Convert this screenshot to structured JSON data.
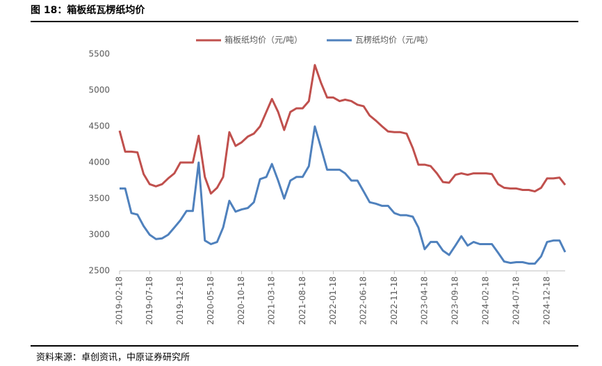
{
  "chart_data": {
    "type": "line",
    "title": "图 18：箱板纸瓦楞纸均价",
    "source": "资料来源：卓创资讯，中原证券研究所",
    "x": [
      "2019-02-18",
      "2019-03-18",
      "2019-04-18",
      "2019-05-18",
      "2019-06-18",
      "2019-07-18",
      "2019-08-18",
      "2019-09-18",
      "2019-10-18",
      "2019-11-18",
      "2019-12-18",
      "2020-01-18",
      "2020-02-18",
      "2020-03-18",
      "2020-04-18",
      "2020-05-18",
      "2020-06-18",
      "2020-07-18",
      "2020-08-18",
      "2020-09-18",
      "2020-10-18",
      "2020-11-18",
      "2020-12-18",
      "2021-01-18",
      "2021-02-18",
      "2021-03-18",
      "2021-04-18",
      "2021-05-18",
      "2021-06-18",
      "2021-07-18",
      "2021-08-18",
      "2021-09-18",
      "2021-10-18",
      "2021-11-18",
      "2021-12-18",
      "2022-01-18",
      "2022-02-18",
      "2022-03-18",
      "2022-04-18",
      "2022-05-18",
      "2022-06-18",
      "2022-07-18",
      "2022-08-18",
      "2022-09-18",
      "2022-10-18",
      "2022-11-18",
      "2022-12-18",
      "2023-01-18",
      "2023-02-18",
      "2023-03-18",
      "2023-04-18",
      "2023-05-18",
      "2023-06-18",
      "2023-07-18",
      "2023-08-18",
      "2023-09-18",
      "2023-10-18",
      "2023-11-18",
      "2023-12-18",
      "2024-01-18",
      "2024-02-18",
      "2024-03-18",
      "2024-04-18",
      "2024-05-18",
      "2024-06-18",
      "2024-07-18",
      "2024-08-18",
      "2024-09-18",
      "2024-10-18",
      "2024-11-18",
      "2024-12-18",
      "2025-01-18",
      "2025-02-18",
      "2025-03-18"
    ],
    "series": [
      {
        "name": "箱板纸均价（元/吨）",
        "color": "#c0504d",
        "values": [
          4440,
          4150,
          4150,
          4140,
          3840,
          3700,
          3670,
          3700,
          3780,
          3850,
          4000,
          4000,
          4000,
          4370,
          3800,
          3570,
          3650,
          3800,
          4420,
          4230,
          4280,
          4360,
          4400,
          4500,
          4700,
          4880,
          4700,
          4450,
          4700,
          4750,
          4750,
          4850,
          5350,
          5100,
          4900,
          4900,
          4850,
          4870,
          4850,
          4800,
          4780,
          4650,
          4580,
          4500,
          4430,
          4420,
          4420,
          4400,
          4200,
          3970,
          3970,
          3950,
          3850,
          3730,
          3720,
          3830,
          3850,
          3830,
          3850,
          3850,
          3850,
          3840,
          3700,
          3650,
          3640,
          3640,
          3620,
          3620,
          3600,
          3650,
          3780,
          3780,
          3790,
          3690
        ]
      },
      {
        "name": "瓦楞纸均价（元/吨）",
        "color": "#4f81bd",
        "values": [
          3640,
          3640,
          3300,
          3280,
          3120,
          3000,
          2940,
          2950,
          3000,
          3100,
          3200,
          3330,
          3330,
          4000,
          2920,
          2870,
          2900,
          3100,
          3470,
          3320,
          3350,
          3370,
          3450,
          3770,
          3800,
          3980,
          3750,
          3500,
          3750,
          3800,
          3800,
          3950,
          4500,
          4200,
          3900,
          3900,
          3900,
          3850,
          3750,
          3750,
          3600,
          3450,
          3430,
          3400,
          3400,
          3300,
          3270,
          3270,
          3250,
          3100,
          2800,
          2900,
          2900,
          2780,
          2720,
          2850,
          2980,
          2850,
          2900,
          2870,
          2870,
          2870,
          2750,
          2630,
          2610,
          2620,
          2620,
          2600,
          2600,
          2700,
          2900,
          2920,
          2920,
          2760
        ]
      }
    ],
    "xlim": [
      "2019-02-18",
      "2025-03-18"
    ],
    "xticks": [
      "2019-02-18",
      "2019-07-18",
      "2019-12-18",
      "2020-05-18",
      "2020-10-18",
      "2021-03-18",
      "2021-08-18",
      "2022-01-18",
      "2022-06-18",
      "2022-11-18",
      "2023-04-18",
      "2023-09-18",
      "2024-02-18",
      "2024-07-18",
      "2024-12-18"
    ],
    "ylim": [
      2500,
      5500
    ],
    "yticks": [
      2500,
      3000,
      3500,
      4000,
      4500,
      5000,
      5500
    ],
    "grid": false,
    "legend": "top"
  }
}
